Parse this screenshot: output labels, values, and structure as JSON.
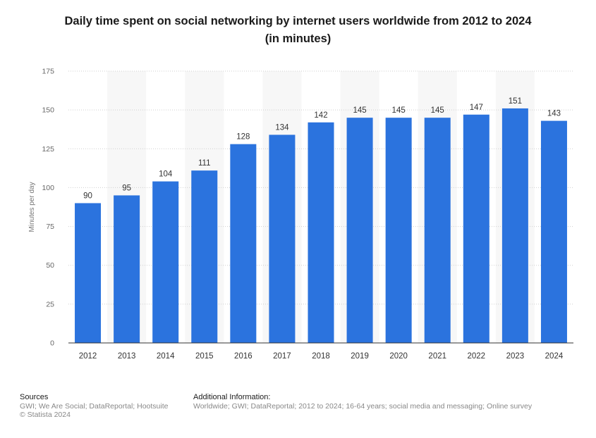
{
  "chart_data": {
    "type": "bar",
    "title_line1": "Daily time spent on social networking by internet users worldwide from 2012 to 2024",
    "title_line2": "(in minutes)",
    "ylabel": "Minutes per day",
    "xlabel": "",
    "ylim": [
      0,
      175
    ],
    "yticks": [
      "0",
      "25",
      "50",
      "75",
      "100",
      "125",
      "150",
      "175"
    ],
    "ytick_values": [
      0,
      25,
      50,
      75,
      100,
      125,
      150,
      175
    ],
    "categories": [
      "2012",
      "2013",
      "2014",
      "2015",
      "2016",
      "2017",
      "2018",
      "2019",
      "2020",
      "2021",
      "2022",
      "2023",
      "2024"
    ],
    "values": [
      90,
      95,
      104,
      111,
      128,
      134,
      142,
      145,
      145,
      145,
      147,
      151,
      143
    ],
    "data_labels": [
      "90",
      "95",
      "104",
      "111",
      "128",
      "134",
      "142",
      "145",
      "145",
      "145",
      "147",
      "151",
      "143"
    ],
    "grid": "horizontal dotted",
    "bar_color": "#2b73de",
    "band_color": "#f7f7f7"
  },
  "footer": {
    "sources_heading": "Sources",
    "sources_text": "GWI; We Are Social; DataReportal; Hootsuite",
    "copyright": "© Statista 2024",
    "additional_heading": "Additional Information:",
    "additional_text": "Worldwide; GWI; DataReportal; 2012 to 2024; 16-64 years; social media and messaging; Online survey"
  }
}
